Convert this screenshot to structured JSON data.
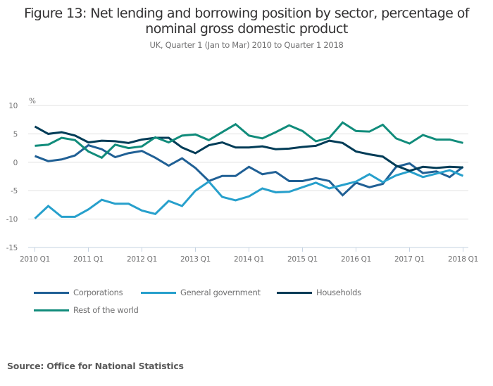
{
  "chart_data": {
    "type": "line",
    "title": "Figure 13: Net lending and borrowing position by sector, percentage of nominal gross domestic product",
    "title_lines": [
      "Figure 13: Net lending and borrowing position by sector, percentage of",
      "nominal gross domestic product"
    ],
    "subtitle": "UK, Quarter 1 (Jan to Mar) 2010 to Quarter 1 2018",
    "ylabel": "%",
    "xlabel": "",
    "ylim": [
      -15,
      10
    ],
    "yticks": [
      10,
      5,
      0,
      -5,
      -10,
      -15
    ],
    "xtick_labels": [
      "2010 Q1",
      "2011 Q1",
      "2012 Q1",
      "2013 Q1",
      "2014 Q1",
      "2015 Q1",
      "2016 Q1",
      "2017 Q1",
      "2018 Q1"
    ],
    "x": [
      "2010 Q1",
      "2010 Q2",
      "2010 Q3",
      "2010 Q4",
      "2011 Q1",
      "2011 Q2",
      "2011 Q3",
      "2011 Q4",
      "2012 Q1",
      "2012 Q2",
      "2012 Q3",
      "2012 Q4",
      "2013 Q1",
      "2013 Q2",
      "2013 Q3",
      "2013 Q4",
      "2014 Q1",
      "2014 Q2",
      "2014 Q3",
      "2014 Q4",
      "2015 Q1",
      "2015 Q2",
      "2015 Q3",
      "2015 Q4",
      "2016 Q1",
      "2016 Q2",
      "2016 Q3",
      "2016 Q4",
      "2017 Q1",
      "2017 Q2",
      "2017 Q3",
      "2017 Q4",
      "2018 Q1"
    ],
    "grid": true,
    "legend_position": "bottom",
    "series": [
      {
        "name": "Corporations",
        "color": "#206095",
        "values": [
          1.1,
          0.2,
          0.5,
          1.2,
          3.0,
          2.3,
          0.9,
          1.6,
          2.0,
          0.8,
          -0.6,
          0.7,
          -1.0,
          -3.3,
          -2.4,
          -2.4,
          -0.8,
          -2.1,
          -1.7,
          -3.3,
          -3.3,
          -2.8,
          -3.3,
          -5.8,
          -3.6,
          -4.4,
          -3.8,
          -0.8,
          -0.2,
          -1.9,
          -1.6,
          -2.6,
          -0.8
        ]
      },
      {
        "name": "General government",
        "color": "#27a0cc",
        "values": [
          -9.9,
          -7.7,
          -9.6,
          -9.6,
          -8.3,
          -6.6,
          -7.3,
          -7.3,
          -8.5,
          -9.1,
          -6.8,
          -7.7,
          -5.0,
          -3.4,
          -6.1,
          -6.7,
          -6.0,
          -4.6,
          -5.3,
          -5.2,
          -4.4,
          -3.6,
          -4.6,
          -4.0,
          -3.4,
          -2.1,
          -3.5,
          -2.3,
          -1.6,
          -2.6,
          -2.0,
          -1.4,
          -2.4
        ]
      },
      {
        "name": "Households",
        "color": "#003c57",
        "values": [
          6.3,
          5.0,
          5.3,
          4.7,
          3.5,
          3.8,
          3.7,
          3.4,
          4.0,
          4.3,
          4.3,
          2.6,
          1.6,
          3.0,
          3.5,
          2.6,
          2.6,
          2.8,
          2.3,
          2.4,
          2.7,
          2.9,
          3.8,
          3.4,
          1.9,
          1.4,
          1.0,
          -0.6,
          -1.5,
          -0.8,
          -1.0,
          -0.8,
          -0.9
        ]
      },
      {
        "name": "Rest of the world",
        "color": "#118c7b",
        "values": [
          2.9,
          3.1,
          4.3,
          3.9,
          1.9,
          0.8,
          3.1,
          2.5,
          2.8,
          4.4,
          3.5,
          4.7,
          4.9,
          3.9,
          5.3,
          6.7,
          4.7,
          4.2,
          5.3,
          6.5,
          5.5,
          3.7,
          4.3,
          7.0,
          5.5,
          5.4,
          6.6,
          4.2,
          3.3,
          4.8,
          4.0,
          4.0,
          3.4
        ]
      }
    ]
  },
  "source": "Source: Office for National Statistics"
}
